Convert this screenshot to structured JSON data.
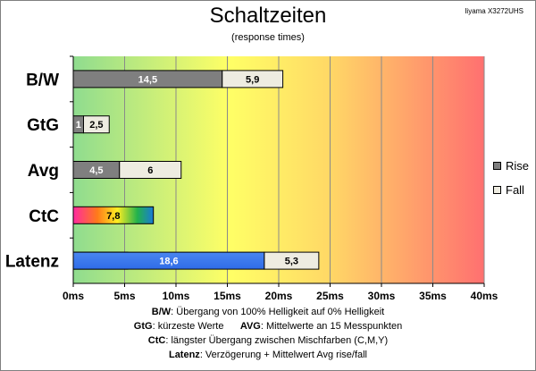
{
  "header": {
    "title": "Schaltzeiten",
    "subtitle": "(response times)",
    "model": "Iiyama X3272UHS"
  },
  "chart_data": {
    "type": "bar",
    "orientation": "horizontal",
    "stacked": true,
    "categories": [
      "B/W",
      "GtG",
      "Avg",
      "CtC",
      "Latenz"
    ],
    "series": [
      {
        "name": "Rise",
        "values": [
          14.5,
          1,
          4.5,
          null,
          null
        ],
        "labels": [
          "14,5",
          "1",
          "4,5",
          "",
          ""
        ]
      },
      {
        "name": "Fall",
        "values": [
          5.9,
          2.5,
          6,
          null,
          5.3
        ],
        "labels": [
          "5,9",
          "2,5",
          "6",
          "",
          "5,3"
        ]
      }
    ],
    "extra_bars": [
      {
        "category": "CtC",
        "value": 7.8,
        "label": "7,8",
        "fill": "rainbow"
      },
      {
        "category": "Latenz",
        "value": 18.6,
        "label": "18,6",
        "fill": "blue"
      }
    ],
    "xlim": [
      0,
      40
    ],
    "x_ticks": [
      "0ms",
      "5ms",
      "10ms",
      "15ms",
      "20ms",
      "25ms",
      "30ms",
      "35ms",
      "40ms"
    ],
    "grid": true,
    "legend_position": "right",
    "background": "green-yellow-red gradient"
  },
  "legend": [
    {
      "name": "Rise",
      "color": "#7f7f7f"
    },
    {
      "name": "Fall",
      "color": "#eeece1"
    }
  ],
  "notes": [
    {
      "key": "B/W",
      "text": ":  Übergang von 100% Helligkeit auf 0% Helligkeit"
    },
    {
      "key": "GtG",
      "text": ": kürzeste  Werte",
      "key2": "AVG",
      "text2": ": Mittelwerte  an 15 Messpunkten"
    },
    {
      "key": "CtC",
      "text": ": längster Übergang  zwischen Mischfarben (C,M,Y)"
    },
    {
      "key": "Latenz",
      "text": ": Verzögerung  + Mittelwert  Avg rise/fall"
    }
  ],
  "colors": {
    "rise": "#7f7f7f",
    "fall": "#eeece1",
    "latency": "#2f6ce8",
    "border": "#000000",
    "gradient_green": "#8fdc8f",
    "gradient_yellow": "#ffff66",
    "gradient_red": "#ff7070"
  }
}
